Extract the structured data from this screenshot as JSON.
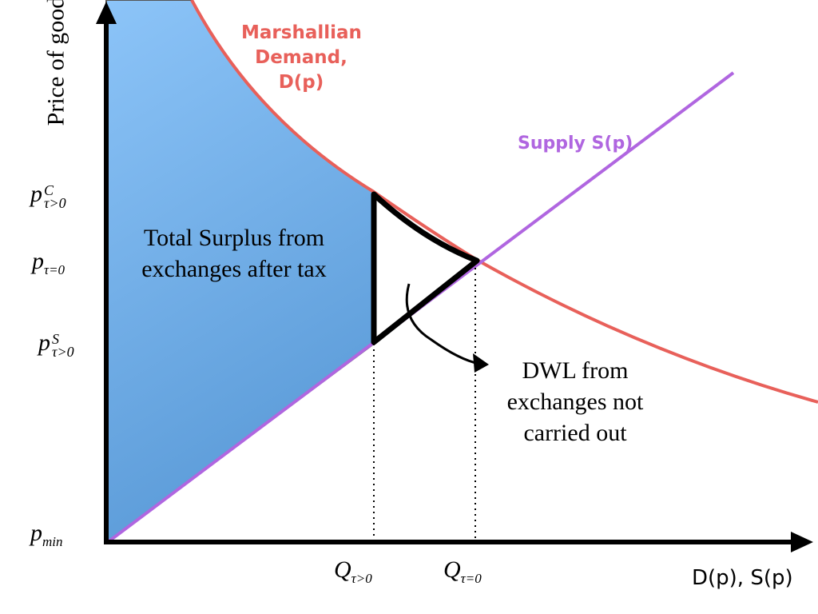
{
  "axes": {
    "y_label": "Price of good",
    "x_label": "D(p), S(p)"
  },
  "curves": {
    "demand_label": [
      "Marshallian",
      "Demand,",
      "D(p)"
    ],
    "supply_label": "Supply S(p)"
  },
  "price_labels": {
    "p_c": {
      "base": "p",
      "sup": "C",
      "sub": "τ>0"
    },
    "p_eq": {
      "base": "p",
      "sub": "τ=0"
    },
    "p_s": {
      "base": "p",
      "sup": "S",
      "sub": "τ>0"
    },
    "p_min": {
      "base": "p",
      "sub": "min"
    }
  },
  "quantity_labels": {
    "q_tax": {
      "base": "Q",
      "sub": "τ>0"
    },
    "q_eq": {
      "base": "Q",
      "sub": "τ=0"
    }
  },
  "annotations": {
    "surplus": [
      "Total Surplus from",
      "exchanges after tax"
    ],
    "dwl": [
      "DWL from",
      "exchanges not",
      "carried out"
    ]
  },
  "colors": {
    "demand": "#e8605a",
    "supply": "#b066e0",
    "surplus_fill_top": "#8cc4f8",
    "surplus_fill_bottom": "#5b9bd8"
  }
}
